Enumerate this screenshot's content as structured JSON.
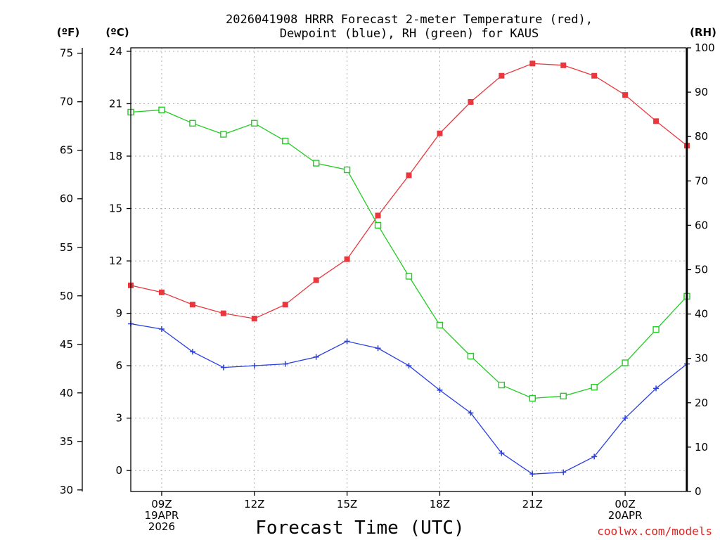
{
  "chart_data": {
    "type": "line",
    "title_line1": "2026041908 HRRR Forecast 2-meter Temperature (red),",
    "title_line2": "Dewpoint (blue), RH (green) for KAUS",
    "xlabel": "Forecast Time (UTC)",
    "credit": "coolwx.com/models",
    "unit_f": "(ºF)",
    "unit_c": "(ºC)",
    "unit_rh": "(RH)",
    "x_hours": [
      8,
      9,
      10,
      11,
      12,
      13,
      14,
      15,
      16,
      17,
      18,
      19,
      20,
      21,
      22,
      23,
      24,
      25,
      26
    ],
    "x_ticks": [
      {
        "hour": 9,
        "lines": [
          "09Z",
          "19APR",
          "2026"
        ]
      },
      {
        "hour": 12,
        "lines": [
          "12Z"
        ]
      },
      {
        "hour": 15,
        "lines": [
          "15Z"
        ]
      },
      {
        "hour": 18,
        "lines": [
          "18Z"
        ]
      },
      {
        "hour": 21,
        "lines": [
          "21Z"
        ]
      },
      {
        "hour": 24,
        "lines": [
          "00Z",
          "20APR"
        ]
      }
    ],
    "xlim": [
      8,
      26
    ],
    "ylim_c": [
      -1.2,
      24.2
    ],
    "ylim_rh": [
      0,
      100
    ],
    "c_ticks": [
      0,
      3,
      6,
      9,
      12,
      15,
      18,
      21,
      24
    ],
    "f_ticks": [
      30,
      35,
      40,
      45,
      50,
      55,
      60,
      65,
      70,
      75
    ],
    "rh_ticks": [
      0,
      10,
      20,
      30,
      40,
      50,
      60,
      70,
      80,
      90,
      100
    ],
    "series": [
      {
        "name": "Temperature",
        "axis": "c",
        "color": "#e8383d",
        "marker": "filled-square",
        "values": [
          10.6,
          10.2,
          9.5,
          9.0,
          8.7,
          9.5,
          10.9,
          12.1,
          14.6,
          16.9,
          19.3,
          21.1,
          22.6,
          23.3,
          23.2,
          22.6,
          21.5,
          20.0,
          18.6
        ]
      },
      {
        "name": "Dewpoint",
        "axis": "c",
        "color": "#2a3fe0",
        "marker": "plus",
        "values": [
          8.4,
          8.1,
          6.8,
          5.9,
          6.0,
          6.1,
          6.5,
          7.4,
          7.0,
          6.0,
          4.6,
          3.3,
          1.0,
          -0.2,
          -0.1,
          0.8,
          3.0,
          4.7,
          6.1
        ]
      },
      {
        "name": "RH",
        "axis": "rh",
        "color": "#22cc22",
        "marker": "open-square",
        "values": [
          85.5,
          86.0,
          83.0,
          80.5,
          83.0,
          79.0,
          74.0,
          72.5,
          60.0,
          48.5,
          37.5,
          30.5,
          24.0,
          21.0,
          21.5,
          23.5,
          29.0,
          36.5,
          44.0
        ]
      }
    ]
  }
}
